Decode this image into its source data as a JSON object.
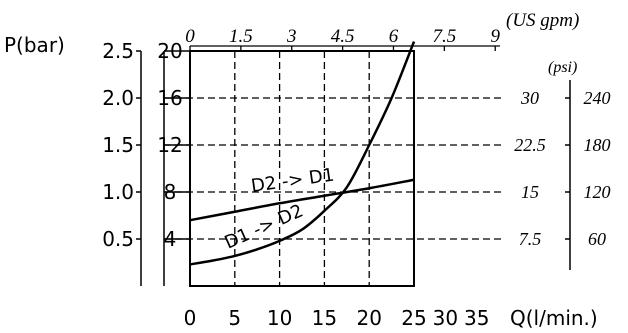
{
  "chart_data": {
    "type": "line",
    "title": "",
    "xlabel": "Q(l/min.)",
    "ylabel": "P(bar)",
    "xlim": [
      0,
      25
    ],
    "ylim": [
      0,
      2.5
    ],
    "grid": true,
    "bottom_axis": {
      "label": "Q(l/min.)",
      "ticks": [
        {
          "value": 0,
          "label": "0"
        },
        {
          "value": 5,
          "label": "5"
        },
        {
          "value": 10,
          "label": "10"
        },
        {
          "value": 15,
          "label": "15"
        },
        {
          "value": 20,
          "label": "20"
        },
        {
          "value": 25,
          "label": "25"
        },
        {
          "value": 30,
          "label": "30"
        },
        {
          "value": 35,
          "label": "35"
        }
      ]
    },
    "top_axis": {
      "label": "(US gpm)",
      "ticks": [
        {
          "value": 0,
          "label": "0"
        },
        {
          "value": 1.5,
          "label": "1.5"
        },
        {
          "value": 3,
          "label": "3"
        },
        {
          "value": 4.5,
          "label": "4.5"
        },
        {
          "value": 6,
          "label": "6"
        },
        {
          "value": 7.5,
          "label": "7.5"
        },
        {
          "value": 9,
          "label": "9"
        }
      ]
    },
    "left_axis_bar": {
      "ticks": [
        {
          "value": 0.5,
          "label": "0.5"
        },
        {
          "value": 1.0,
          "label": "1.0"
        },
        {
          "value": 1.5,
          "label": "1.5"
        },
        {
          "value": 2.0,
          "label": "2.0"
        },
        {
          "value": 2.5,
          "label": "2.5"
        }
      ]
    },
    "left_axis_second": {
      "ticks": [
        {
          "value": 4,
          "label": "4"
        },
        {
          "value": 8,
          "label": "8"
        },
        {
          "value": 12,
          "label": "12"
        },
        {
          "value": 16,
          "label": "16"
        },
        {
          "value": 20,
          "label": "20"
        }
      ]
    },
    "right_axis_inner": {
      "ticks": [
        {
          "value": 7.5,
          "label": "7.5"
        },
        {
          "value": 15,
          "label": "15"
        },
        {
          "value": 22.5,
          "label": "22.5"
        },
        {
          "value": 30,
          "label": "30"
        }
      ]
    },
    "right_axis_outer": {
      "label": "(psi)",
      "ticks": [
        {
          "value": 60,
          "label": "60"
        },
        {
          "value": 120,
          "label": "120"
        },
        {
          "value": 180,
          "label": "180"
        },
        {
          "value": 240,
          "label": "240"
        }
      ]
    },
    "series": [
      {
        "name": "D2 -> D1",
        "x": [
          0,
          5,
          10,
          15,
          20,
          25
        ],
        "y": [
          0.7,
          0.79,
          0.88,
          0.96,
          1.04,
          1.13
        ]
      },
      {
        "name": "D1 -> D2",
        "x": [
          0,
          2.5,
          5,
          7.5,
          10,
          12.5,
          15,
          17.5,
          20,
          22.5,
          25
        ],
        "y": [
          0.23,
          0.27,
          0.32,
          0.39,
          0.48,
          0.6,
          0.8,
          1.05,
          1.5,
          2.0,
          2.6
        ]
      }
    ]
  }
}
